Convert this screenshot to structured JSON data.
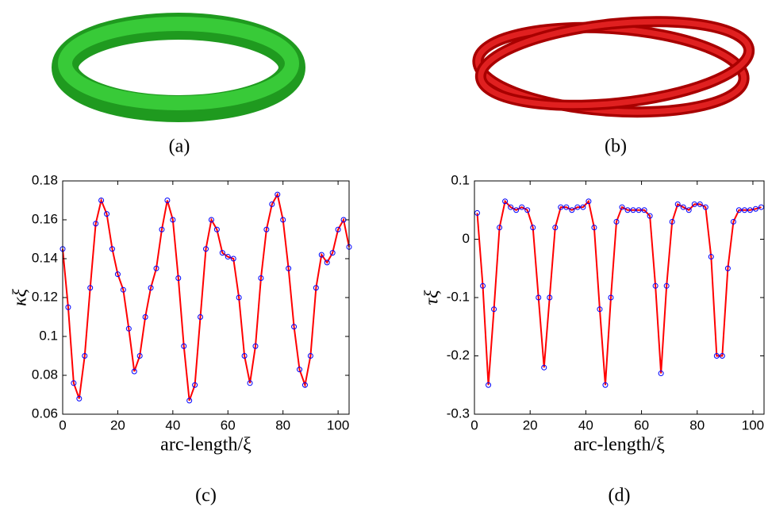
{
  "panels": [
    {
      "caption": "(a)"
    },
    {
      "caption": "(b)"
    }
  ],
  "chart_data": [
    {
      "type": "line",
      "caption": "(c)",
      "xlabel": "arc-length/ξ",
      "ylabel": "κξ",
      "xlim": [
        0,
        104
      ],
      "ylim": [
        0.06,
        0.18
      ],
      "xticks": [
        0,
        20,
        40,
        60,
        80,
        100
      ],
      "yticks": [
        0.06,
        0.08,
        0.1,
        0.12,
        0.14,
        0.16,
        0.18
      ],
      "x": [
        0,
        2,
        4,
        6,
        8,
        10,
        12,
        14,
        16,
        18,
        20,
        22,
        24,
        26,
        28,
        30,
        32,
        34,
        36,
        38,
        40,
        42,
        44,
        46,
        48,
        50,
        52,
        54,
        56,
        58,
        60,
        62,
        64,
        66,
        68,
        70,
        72,
        74,
        76,
        78,
        80,
        82,
        84,
        86,
        88,
        90,
        92,
        94,
        96,
        98,
        100,
        102,
        104
      ],
      "series": [
        {
          "color": "#ff0000",
          "marker": "line",
          "values": [
            0.145,
            0.115,
            0.076,
            0.068,
            0.09,
            0.125,
            0.158,
            0.17,
            0.163,
            0.145,
            0.132,
            0.124,
            0.104,
            0.082,
            0.09,
            0.11,
            0.125,
            0.135,
            0.155,
            0.17,
            0.16,
            0.13,
            0.095,
            0.067,
            0.075,
            0.11,
            0.145,
            0.16,
            0.155,
            0.143,
            0.141,
            0.14,
            0.12,
            0.09,
            0.076,
            0.095,
            0.13,
            0.155,
            0.168,
            0.173,
            0.16,
            0.135,
            0.105,
            0.083,
            0.075,
            0.09,
            0.125,
            0.142,
            0.138,
            0.143,
            0.155,
            0.16,
            0.146
          ]
        },
        {
          "color": "#0000ff",
          "marker": "circle",
          "values": [
            0.145,
            0.115,
            0.076,
            0.068,
            0.09,
            0.125,
            0.158,
            0.17,
            0.163,
            0.145,
            0.132,
            0.124,
            0.104,
            0.082,
            0.09,
            0.11,
            0.125,
            0.135,
            0.155,
            0.17,
            0.16,
            0.13,
            0.095,
            0.067,
            0.075,
            0.11,
            0.145,
            0.16,
            0.155,
            0.143,
            0.141,
            0.14,
            0.12,
            0.09,
            0.076,
            0.095,
            0.13,
            0.155,
            0.168,
            0.173,
            0.16,
            0.135,
            0.105,
            0.083,
            0.075,
            0.09,
            0.125,
            0.142,
            0.138,
            0.143,
            0.155,
            0.16,
            0.146
          ]
        }
      ]
    },
    {
      "type": "line",
      "caption": "(d)",
      "xlabel": "arc-length/ξ",
      "ylabel": "τξ",
      "xlim": [
        0,
        104
      ],
      "ylim": [
        -0.3,
        0.1
      ],
      "xticks": [
        0,
        20,
        40,
        60,
        80,
        100
      ],
      "yticks": [
        -0.3,
        -0.2,
        -0.1,
        0,
        0.1
      ],
      "x": [
        1,
        3,
        5,
        7,
        9,
        11,
        13,
        15,
        17,
        19,
        21,
        23,
        25,
        27,
        29,
        31,
        33,
        35,
        37,
        39,
        41,
        43,
        45,
        47,
        49,
        51,
        53,
        55,
        57,
        59,
        61,
        63,
        65,
        67,
        69,
        71,
        73,
        75,
        77,
        79,
        81,
        83,
        85,
        87,
        89,
        91,
        93,
        95,
        97,
        99,
        101,
        103
      ],
      "series": [
        {
          "color": "#ff0000",
          "marker": "line",
          "values": [
            0.045,
            -0.08,
            -0.25,
            -0.12,
            0.02,
            0.065,
            0.055,
            0.05,
            0.055,
            0.05,
            0.02,
            -0.1,
            -0.22,
            -0.1,
            0.02,
            0.055,
            0.055,
            0.05,
            0.055,
            0.055,
            0.065,
            0.02,
            -0.12,
            -0.25,
            -0.1,
            0.03,
            0.055,
            0.05,
            0.05,
            0.05,
            0.05,
            0.04,
            -0.08,
            -0.23,
            -0.08,
            0.03,
            0.06,
            0.055,
            0.05,
            0.06,
            0.06,
            0.055,
            -0.03,
            -0.2,
            -0.2,
            -0.05,
            0.03,
            0.05,
            0.05,
            0.05,
            0.052,
            0.055
          ]
        },
        {
          "color": "#0000ff",
          "marker": "circle",
          "values": [
            0.045,
            -0.08,
            -0.25,
            -0.12,
            0.02,
            0.065,
            0.055,
            0.05,
            0.055,
            0.05,
            0.02,
            -0.1,
            -0.22,
            -0.1,
            0.02,
            0.055,
            0.055,
            0.05,
            0.055,
            0.055,
            0.065,
            0.02,
            -0.12,
            -0.25,
            -0.1,
            0.03,
            0.055,
            0.05,
            0.05,
            0.05,
            0.05,
            0.04,
            -0.08,
            -0.23,
            -0.08,
            0.03,
            0.06,
            0.055,
            0.05,
            0.06,
            0.06,
            0.055,
            -0.03,
            -0.2,
            -0.2,
            -0.05,
            0.03,
            0.05,
            0.05,
            0.05,
            0.052,
            0.055
          ]
        }
      ]
    }
  ]
}
